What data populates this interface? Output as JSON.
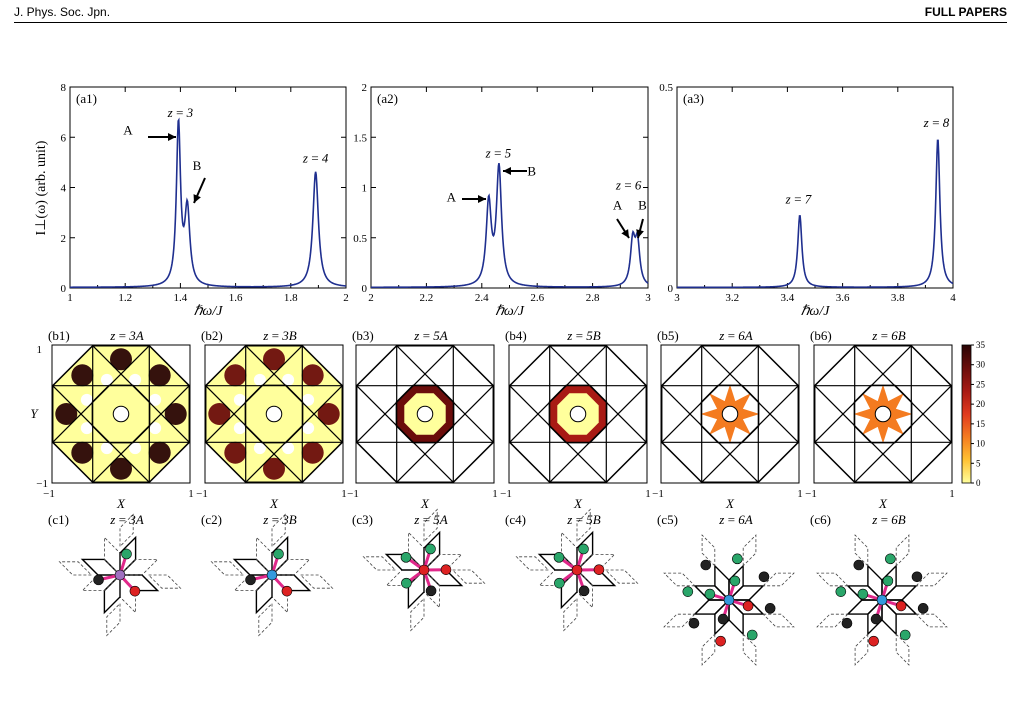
{
  "header": {
    "journal": "J. Phys. Soc. Jpn.",
    "section": "FULL PAPERS"
  },
  "ylabel": "I⊥(ω) (arb. unit)",
  "xlabel": "ℏω/J",
  "spectra": [
    {
      "label": "(a1)",
      "xlim": [
        1,
        2
      ],
      "ylim": [
        0,
        8
      ],
      "xticks": [
        "1",
        "1.2",
        "1.4",
        "1.6",
        "1.8",
        "2"
      ],
      "yticks": [
        "0",
        "2",
        "4",
        "6",
        "8"
      ],
      "peaks": [
        {
          "x": 1.393,
          "h": 6.4,
          "w": 0.009
        },
        {
          "x": 1.425,
          "h": 3.0,
          "w": 0.011
        },
        {
          "x": 1.89,
          "h": 4.6,
          "w": 0.012
        }
      ],
      "annotations": [
        {
          "text": "z = 3",
          "x": 1.4,
          "y": 6.8
        },
        {
          "text": "z = 4",
          "x": 1.89,
          "y": 5.0
        },
        {
          "text": "A",
          "x": 1.21,
          "y": 6.1
        },
        {
          "text": "B",
          "x": 1.46,
          "y": 4.7
        }
      ]
    },
    {
      "label": "(a2)",
      "xlim": [
        2,
        3
      ],
      "ylim": [
        0,
        2
      ],
      "xticks": [
        "2",
        "2.2",
        "2.4",
        "2.6",
        "2.8",
        "3"
      ],
      "yticks": [
        "0",
        "0.5",
        "1",
        "1.5",
        "2"
      ],
      "peaks": [
        {
          "x": 2.425,
          "h": 0.82,
          "w": 0.011
        },
        {
          "x": 2.462,
          "h": 1.17,
          "w": 0.011
        },
        {
          "x": 2.945,
          "h": 0.44,
          "w": 0.01
        },
        {
          "x": 2.962,
          "h": 0.42,
          "w": 0.01
        }
      ],
      "annotations": [
        {
          "text": "z = 5",
          "x": 2.46,
          "y": 1.3
        },
        {
          "text": "z = 6",
          "x": 2.93,
          "y": 0.98
        },
        {
          "text": "A",
          "x": 2.29,
          "y": 0.86
        },
        {
          "text": "B",
          "x": 2.58,
          "y": 1.12
        },
        {
          "text": "A",
          "x": 2.89,
          "y": 0.78
        },
        {
          "text": "B",
          "x": 2.98,
          "y": 0.78
        }
      ]
    },
    {
      "label": "(a3)",
      "xlim": [
        3,
        4
      ],
      "ylim": [
        0,
        0.5
      ],
      "xticks": [
        "3",
        "3.2",
        "3.4",
        "3.6",
        "3.8",
        "4"
      ],
      "yticks": [
        "0",
        "0.5"
      ],
      "peaks": [
        {
          "x": 3.445,
          "h": 0.18,
          "w": 0.009
        },
        {
          "x": 3.945,
          "h": 0.37,
          "w": 0.009
        }
      ],
      "annotations": [
        {
          "text": "z = 7",
          "x": 3.44,
          "y": 0.21
        },
        {
          "text": "z = 8",
          "x": 3.94,
          "y": 0.4
        }
      ]
    }
  ],
  "maps": [
    {
      "label": "(b1)",
      "title": "z = 3A"
    },
    {
      "label": "(b2)",
      "title": "z = 3B"
    },
    {
      "label": "(b3)",
      "title": "z = 5A"
    },
    {
      "label": "(b4)",
      "title": "z = 5B"
    },
    {
      "label": "(b5)",
      "title": "z = 6A"
    },
    {
      "label": "(b6)",
      "title": "z = 6B"
    }
  ],
  "map_axes": {
    "xlabel": "X",
    "ylabel": "Y",
    "xticks": [
      "−1",
      "1"
    ],
    "yticks": [
      "1",
      "−1"
    ]
  },
  "colorbar": {
    "ticks": [
      "0",
      "5",
      "10",
      "15",
      "20",
      "25",
      "30",
      "35"
    ],
    "colors": [
      "#ffff9c",
      "#ffc233",
      "#f47b20",
      "#e03a1e",
      "#a81a14",
      "#6b0d0b",
      "#2a0505"
    ]
  },
  "clusters": [
    {
      "label": "(c1)",
      "title": "z = 3A"
    },
    {
      "label": "(c2)",
      "title": "z = 3B"
    },
    {
      "label": "(c3)",
      "title": "z = 5A"
    },
    {
      "label": "(c4)",
      "title": "z = 5B"
    },
    {
      "label": "(c5)",
      "title": "z = 6A"
    },
    {
      "label": "(c6)",
      "title": "z = 6B"
    }
  ],
  "site_colors": {
    "center": "#a070c0",
    "green": "#2aa66a",
    "red": "#dd2222",
    "black": "#222222",
    "blue": "#3399dd",
    "bond": "#e0288a"
  }
}
